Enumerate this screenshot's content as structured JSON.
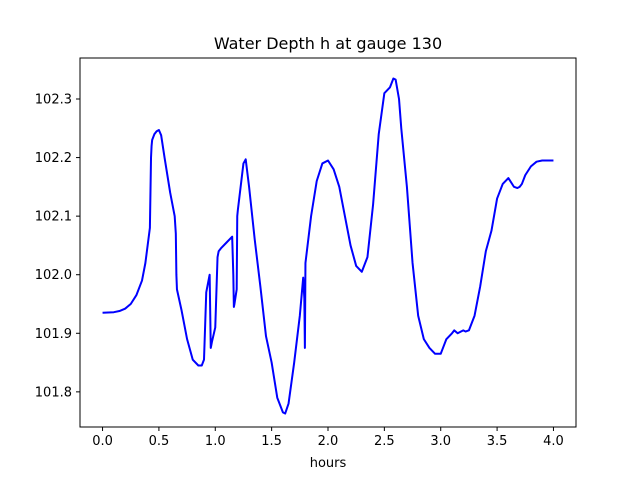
{
  "chart_data": {
    "type": "line",
    "title": "Water Depth h at gauge 130",
    "xlabel": "hours",
    "ylabel": "",
    "xlim": [
      -0.2,
      4.2
    ],
    "ylim": [
      101.74,
      102.37
    ],
    "xticks": [
      0.0,
      0.5,
      1.0,
      1.5,
      2.0,
      2.5,
      3.0,
      3.5,
      4.0
    ],
    "xtick_labels": [
      "0.0",
      "0.5",
      "1.0",
      "1.5",
      "2.0",
      "2.5",
      "3.0",
      "3.5",
      "4.0"
    ],
    "yticks": [
      101.8,
      101.9,
      102.0,
      102.1,
      102.2,
      102.3
    ],
    "ytick_labels": [
      "101.8",
      "101.9",
      "102.0",
      "102.1",
      "102.2",
      "102.3"
    ],
    "grid": false,
    "legend": "none",
    "colors": {
      "line": "#0000ff",
      "frame": "#000000",
      "background": "#ffffff"
    },
    "series": [
      {
        "x": [
          0.0,
          0.1,
          0.15,
          0.2,
          0.25,
          0.3,
          0.35,
          0.38,
          0.4,
          0.42,
          0.43,
          0.435,
          0.44,
          0.46,
          0.48,
          0.5,
          0.52,
          0.55,
          0.6,
          0.64,
          0.65,
          0.655,
          0.66,
          0.7,
          0.75,
          0.8,
          0.85,
          0.88,
          0.9,
          0.92,
          0.925,
          0.93,
          0.95,
          0.96,
          0.965,
          0.97,
          1.0,
          1.02,
          1.025,
          1.03,
          1.05,
          1.1,
          1.15,
          1.16,
          1.165,
          1.17,
          1.19,
          1.195,
          1.2,
          1.25,
          1.27,
          1.3,
          1.35,
          1.4,
          1.45,
          1.5,
          1.55,
          1.6,
          1.62,
          1.65,
          1.7,
          1.75,
          1.78,
          1.79,
          1.795,
          1.8,
          1.85,
          1.9,
          1.95,
          2.0,
          2.05,
          2.1,
          2.15,
          2.2,
          2.25,
          2.3,
          2.35,
          2.4,
          2.45,
          2.5,
          2.55,
          2.58,
          2.6,
          2.63,
          2.65,
          2.7,
          2.75,
          2.8,
          2.85,
          2.9,
          2.95,
          3.0,
          3.02,
          3.05,
          3.1,
          3.12,
          3.15,
          3.18,
          3.2,
          3.22,
          3.25,
          3.3,
          3.35,
          3.4,
          3.45,
          3.5,
          3.55,
          3.6,
          3.65,
          3.68,
          3.7,
          3.72,
          3.75,
          3.8,
          3.85,
          3.9,
          3.95,
          4.0
        ],
        "y": [
          101.935,
          101.936,
          101.938,
          101.942,
          101.95,
          101.965,
          101.99,
          102.02,
          102.05,
          102.08,
          102.2,
          102.22,
          102.23,
          102.24,
          102.245,
          102.247,
          102.238,
          102.2,
          102.14,
          102.1,
          102.07,
          102.0,
          101.975,
          101.94,
          101.89,
          101.855,
          101.845,
          101.845,
          101.855,
          101.97,
          101.975,
          101.98,
          102.0,
          101.875,
          101.88,
          101.885,
          101.91,
          102.03,
          102.035,
          102.04,
          102.045,
          102.055,
          102.065,
          102.0,
          101.945,
          101.95,
          101.975,
          102.1,
          102.11,
          102.19,
          102.197,
          102.15,
          102.06,
          101.98,
          101.895,
          101.85,
          101.79,
          101.765,
          101.763,
          101.78,
          101.85,
          101.93,
          101.995,
          101.96,
          101.875,
          102.02,
          102.1,
          102.16,
          102.19,
          102.195,
          102.18,
          102.15,
          102.1,
          102.05,
          102.015,
          102.005,
          102.03,
          102.12,
          102.24,
          102.31,
          102.32,
          102.335,
          102.333,
          102.3,
          102.25,
          102.15,
          102.02,
          101.93,
          101.89,
          101.875,
          101.865,
          101.865,
          101.875,
          101.89,
          101.9,
          101.905,
          101.9,
          101.903,
          101.905,
          101.903,
          101.905,
          101.93,
          101.98,
          102.04,
          102.075,
          102.13,
          102.155,
          102.165,
          102.15,
          102.148,
          102.15,
          102.155,
          102.17,
          102.185,
          102.193,
          102.195,
          102.195,
          102.195
        ]
      }
    ]
  }
}
